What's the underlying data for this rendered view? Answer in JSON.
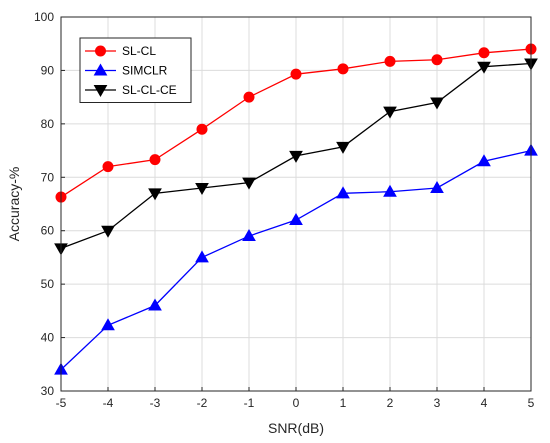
{
  "chart_data": {
    "type": "line",
    "xlabel": "SNR(dB)",
    "ylabel": "Accuracy-%",
    "x": [
      -5,
      -4,
      -3,
      -2,
      -1,
      0,
      1,
      2,
      3,
      4,
      5
    ],
    "xlim": [
      -5,
      5
    ],
    "ylim": [
      30,
      100
    ],
    "xticks": [
      "-5",
      "-4",
      "-3",
      "-2",
      "-1",
      "0",
      "1",
      "2",
      "3",
      "4",
      "5"
    ],
    "yticks": [
      "30",
      "40",
      "50",
      "60",
      "70",
      "80",
      "90",
      "100"
    ],
    "grid": true,
    "legend_position": "top-left",
    "series": [
      {
        "name": "SL-CL",
        "color": "#ff0000",
        "marker": "circle",
        "values": [
          66.3,
          72.0,
          73.3,
          79.0,
          85.0,
          89.3,
          90.3,
          91.7,
          92.0,
          93.3,
          94.0
        ]
      },
      {
        "name": "SIMCLR",
        "color": "#0000ff",
        "marker": "triangle-up",
        "values": [
          34.0,
          42.3,
          46.0,
          55.0,
          59.0,
          62.0,
          67.0,
          67.3,
          68.0,
          73.0,
          75.0
        ]
      },
      {
        "name": "SL-CL-CE",
        "color": "#000000",
        "marker": "triangle-down",
        "values": [
          56.7,
          60.0,
          67.0,
          68.0,
          69.0,
          74.0,
          75.7,
          82.3,
          84.0,
          90.7,
          91.3
        ]
      }
    ]
  }
}
